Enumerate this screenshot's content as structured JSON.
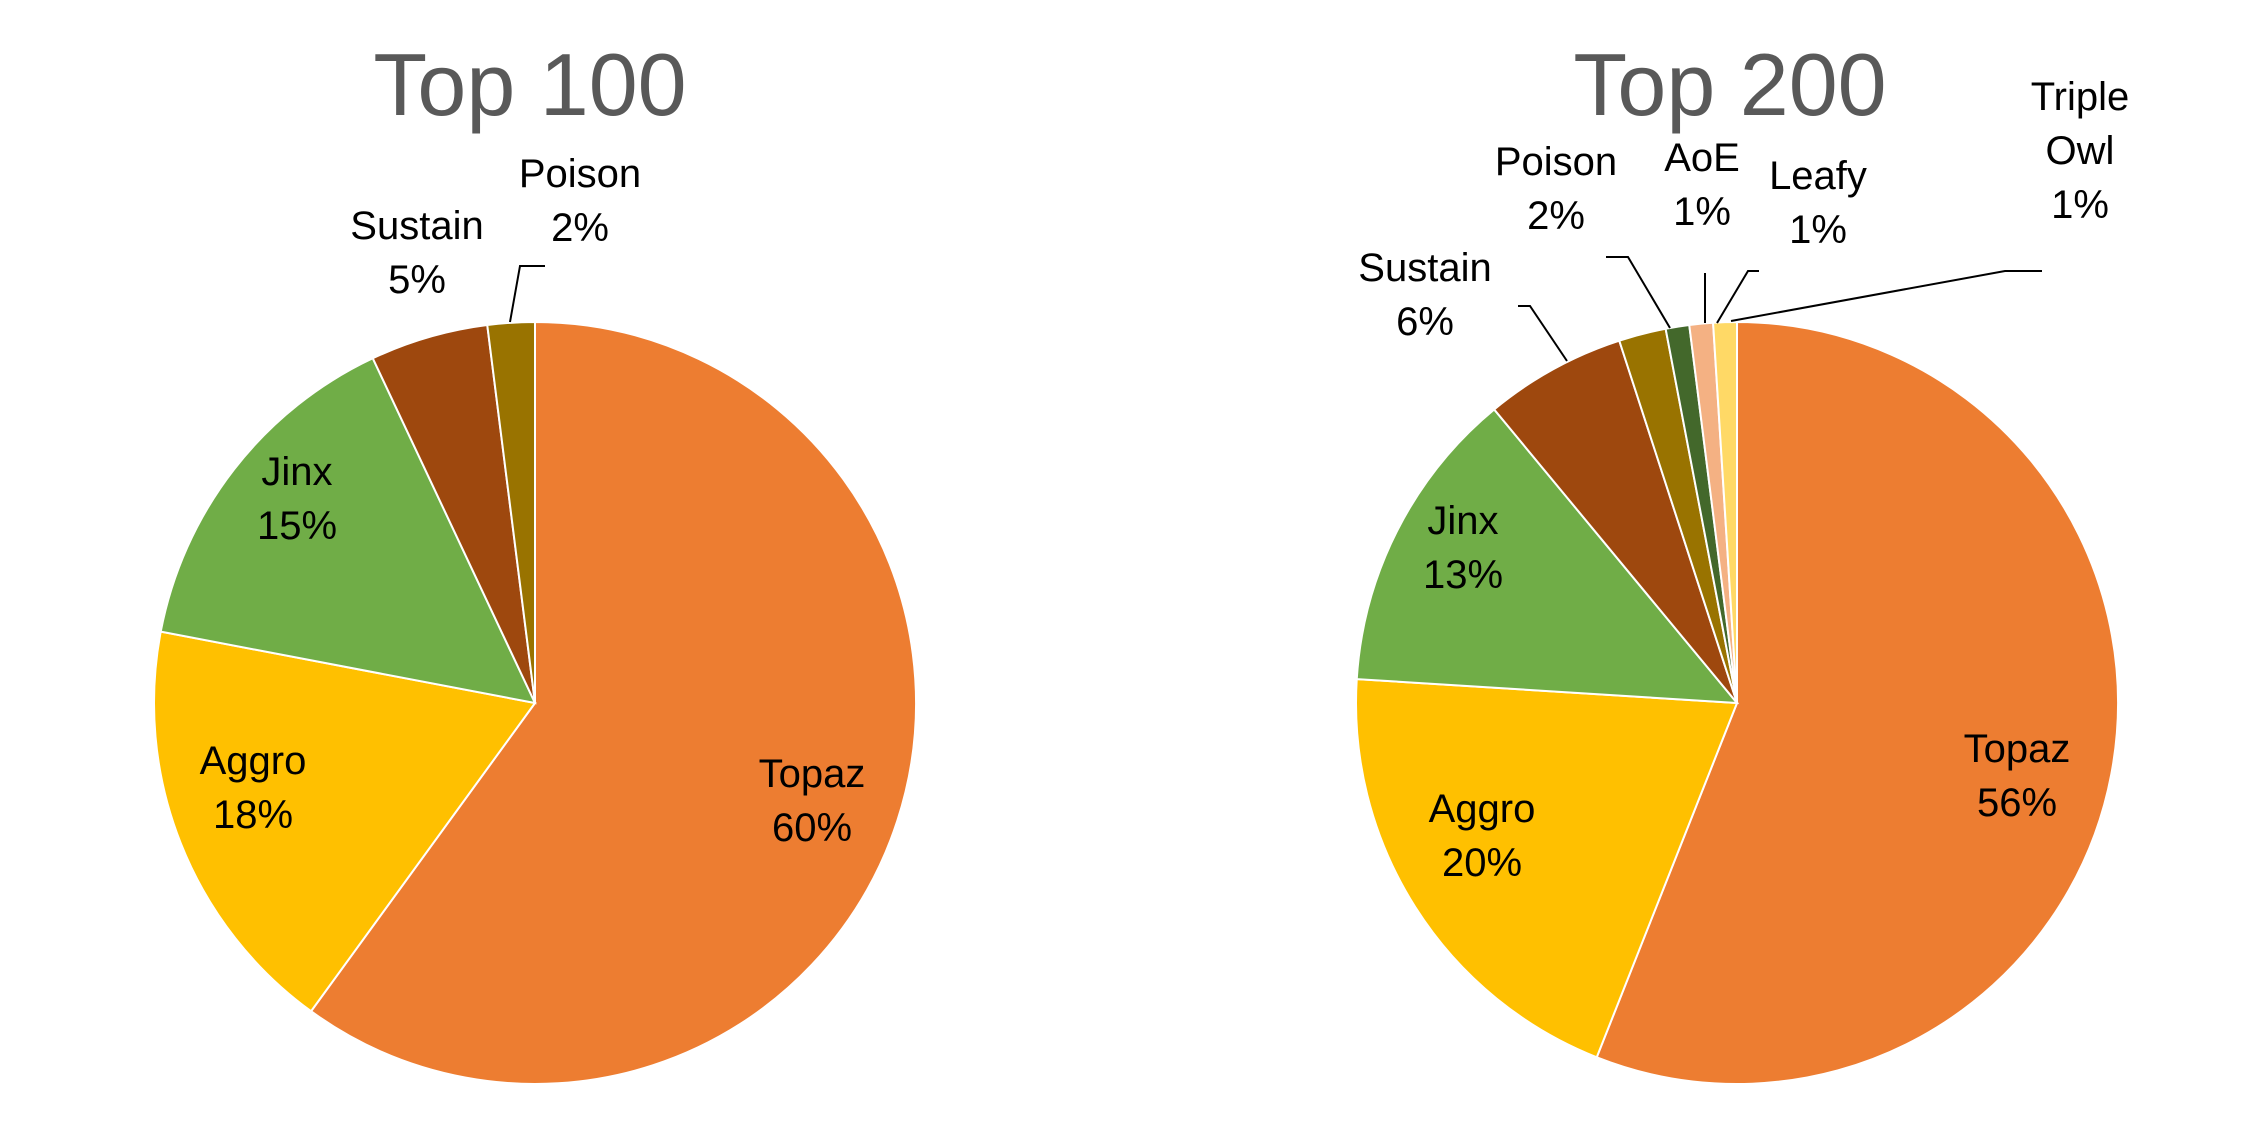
{
  "chart_data": [
    {
      "type": "pie",
      "title": "Top 100",
      "slices": [
        {
          "label": "Topaz",
          "value": 60,
          "display": "60%",
          "color": "#ED7D31"
        },
        {
          "label": "Aggro",
          "value": 18,
          "display": "18%",
          "color": "#FFC000"
        },
        {
          "label": "Jinx",
          "value": 15,
          "display": "15%",
          "color": "#70AD47"
        },
        {
          "label": "Sustain",
          "value": 5,
          "display": "5%",
          "color": "#9E480E"
        },
        {
          "label": "Poison",
          "value": 2,
          "display": "2%",
          "color": "#997300"
        }
      ]
    },
    {
      "type": "pie",
      "title": "Top 200",
      "slices": [
        {
          "label": "Topaz",
          "value": 56,
          "display": "56%",
          "color": "#ED7D31"
        },
        {
          "label": "Aggro",
          "value": 20,
          "display": "20%",
          "color": "#FFC000"
        },
        {
          "label": "Jinx",
          "value": 13,
          "display": "13%",
          "color": "#70AD47"
        },
        {
          "label": "Sustain",
          "value": 6,
          "display": "6%",
          "color": "#9E480E"
        },
        {
          "label": "Poison",
          "value": 2,
          "display": "2%",
          "color": "#997300"
        },
        {
          "label": "AoE",
          "value": 1,
          "display": "1%",
          "color": "#43682B"
        },
        {
          "label": "Leafy",
          "value": 1,
          "display": "1%",
          "color": "#F4B183"
        },
        {
          "label": "Triple Owl",
          "value": 1,
          "display": "1%",
          "color": "#FFD966"
        }
      ]
    }
  ]
}
